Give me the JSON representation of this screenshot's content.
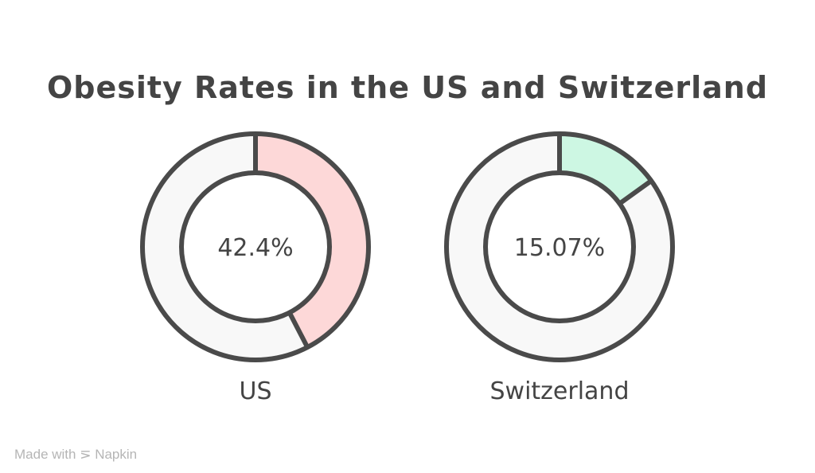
{
  "chart_data": {
    "type": "pie",
    "title": "Obesity Rates in the US and Switzerland",
    "charts": [
      {
        "name": "US",
        "value": 42.4,
        "label": "42.4%",
        "color": "#fdd8d8"
      },
      {
        "name": "Switzerland",
        "value": 15.07,
        "label": "15.07%",
        "color": "#cdf7e3"
      }
    ],
    "remainder_color": "#f8f8f8",
    "stroke_color": "#4a4a4a"
  },
  "footer": {
    "made_with": "Made with",
    "brand": "Napkin"
  }
}
